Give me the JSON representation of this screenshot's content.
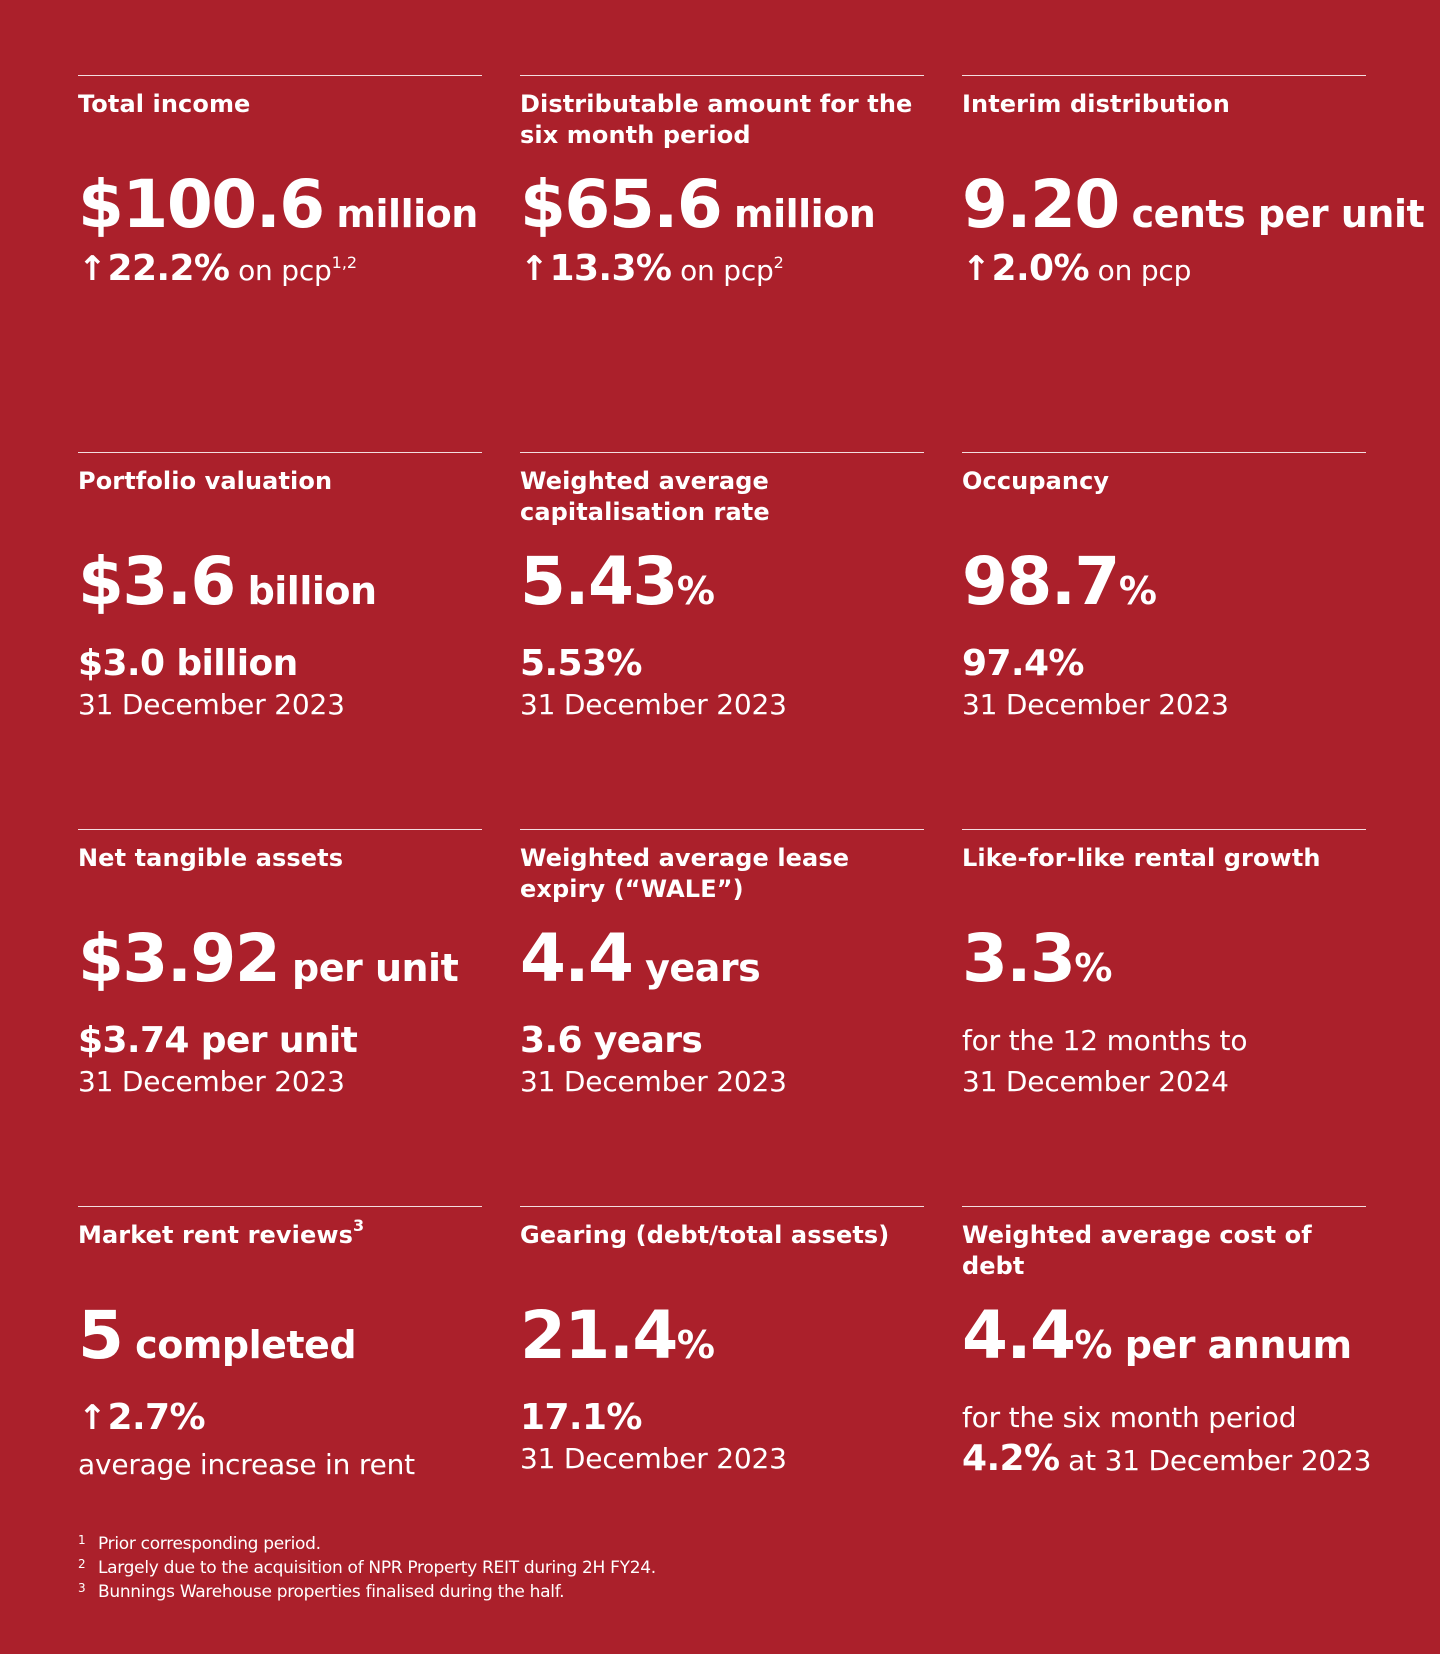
{
  "metrics": [
    {
      "label": "Total income",
      "value": "$100.6",
      "unit": " million",
      "sub_arrow": "↑",
      "sub_strong": "22.2%",
      "sub_light": " on pcp",
      "sub_sup": "1,2"
    },
    {
      "label": "Distributable amount for the six month period",
      "value": "$65.6",
      "unit": " million",
      "sub_arrow": "↑",
      "sub_strong": "13.3%",
      "sub_light": " on pcp",
      "sub_sup": "2"
    },
    {
      "label": "Interim distribution",
      "value": "9.20",
      "unit": " cents per unit",
      "sub_arrow": "↑",
      "sub_strong": "2.0%",
      "sub_light": " on pcp"
    },
    {
      "label": "Portfolio valuation",
      "value": "$3.6",
      "unit": " billion",
      "line1": "$3.0 billion",
      "line2": "31 December 2023"
    },
    {
      "label": "Weighted average capitalisation rate",
      "value": "5.43",
      "unit": "%",
      "line1": "5.53%",
      "line2": "31 December 2023"
    },
    {
      "label": "Occupancy",
      "value": "98.7",
      "unit": "%",
      "line1": "97.4%",
      "line2": "31 December 2023"
    },
    {
      "label": "Net tangible assets",
      "value": "$3.92",
      "unit": " per unit",
      "line1": "$3.74 per unit",
      "line2": "31 December 2023"
    },
    {
      "label": "Weighted average lease expiry (“WALE”)",
      "value": "4.4",
      "unit": " years",
      "line1": "3.6 years",
      "line2": "31 December 2023"
    },
    {
      "label": "Like-for-like rental growth",
      "value": "3.3",
      "unit": "%",
      "line1": "for the 12 months to",
      "line2": "31 December 2024"
    },
    {
      "label": "Market rent reviews",
      "label_sup": "3",
      "value": "5",
      "unit": " completed",
      "line1_arrow": "↑",
      "line1": "2.7%",
      "line2": "average increase in rent"
    },
    {
      "label": "Gearing (debt/total assets)",
      "value": "21.4",
      "unit": "%",
      "line1": "17.1%",
      "line2": "31 December 2023"
    },
    {
      "label": "Weighted average cost of debt",
      "value": "4.4",
      "unit": "% per annum",
      "line1": "for the six month period",
      "line2_strong": "4.2%",
      "line2": " at 31 December 2023"
    }
  ],
  "footnotes": [
    {
      "num": "1",
      "text": "Prior corresponding period."
    },
    {
      "num": "2",
      "text": "Largely due to the acquisition of NPR Property REIT during 2H FY24."
    },
    {
      "num": "3",
      "text": "Bunnings Warehouse properties finalised during the half."
    }
  ]
}
